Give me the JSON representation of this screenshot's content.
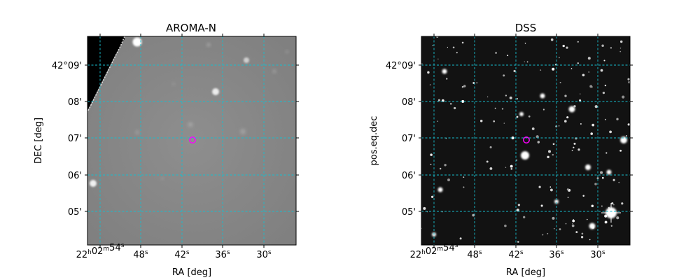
{
  "panels": [
    {
      "title": "AROMA-N",
      "xlabel": "RA [deg]",
      "ylabel": "DEC [deg]",
      "image_style": "grayscale",
      "x_ticks": [
        {
          "main": "22",
          "sup": "h",
          "main2": "02",
          "sup2": "m",
          "main3": "54",
          "sup3": "s"
        },
        {
          "main": "48",
          "sup": "s"
        },
        {
          "main": "42",
          "sup": "s"
        },
        {
          "main": "36",
          "sup": "s"
        },
        {
          "main": "30",
          "sup": "s"
        }
      ],
      "y_ticks": [
        "42°09'",
        "08'",
        "07'",
        "06'",
        "05'"
      ],
      "grid_color": "#17becf",
      "marker_color": "#ff00ff"
    },
    {
      "title": "DSS",
      "xlabel": "RA [deg]",
      "ylabel": "pos.eq.dec",
      "image_style": "dark-starfield",
      "x_ticks": [
        {
          "main": "22",
          "sup": "h",
          "main2": "02",
          "sup2": "m",
          "main3": "54",
          "sup3": "s"
        },
        {
          "main": "48",
          "sup": "s"
        },
        {
          "main": "42",
          "sup": "s"
        },
        {
          "main": "36",
          "sup": "s"
        },
        {
          "main": "30",
          "sup": "s"
        }
      ],
      "y_ticks": [
        "42°09'",
        "08'",
        "07'",
        "06'",
        "05'"
      ],
      "grid_color": "#17becf",
      "marker_color": "#ff00ff"
    }
  ]
}
